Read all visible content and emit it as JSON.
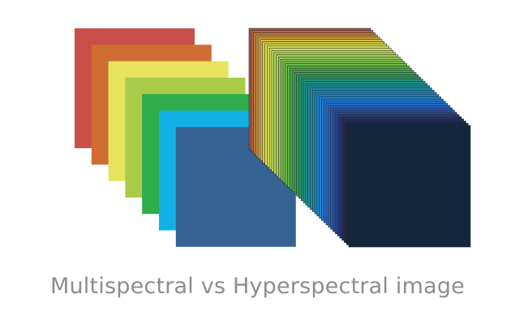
{
  "caption": "Multispectral vs Hyperspectral image",
  "multispectral_band_colors": [
    "#c9504a",
    "#d06d33",
    "#e6e35c",
    "#a8cb48",
    "#2fad4a",
    "#11b1e3",
    "#356394"
  ],
  "hyperspectral_band_colors": [
    "#a85450",
    "#b4663c",
    "#c07a3a",
    "#c98f3c",
    "#cfa53e",
    "#d3bb40",
    "#d9cf48",
    "#dee14f",
    "#d9e354",
    "#cde056",
    "#c0dc57",
    "#b2d758",
    "#a4d257",
    "#96cd54",
    "#88c750",
    "#79c14c",
    "#6bbb49",
    "#5cb547",
    "#4fae48",
    "#41a84a",
    "#36a250",
    "#2f9d5a",
    "#299966",
    "#249674",
    "#1f9482",
    "#1b9290",
    "#18919e",
    "#178fab",
    "#178cb8",
    "#1789c3",
    "#1885cc",
    "#1a80d2",
    "#1d7ad4",
    "#2073d2",
    "#236ccb",
    "#2663c0",
    "#2859b2",
    "#294fa2",
    "#284592",
    "#263b80",
    "#23326e",
    "#1f2a5c",
    "#1b244e",
    "#182043",
    "#13283c"
  ],
  "hyperspectral_front_color": "#13283c"
}
